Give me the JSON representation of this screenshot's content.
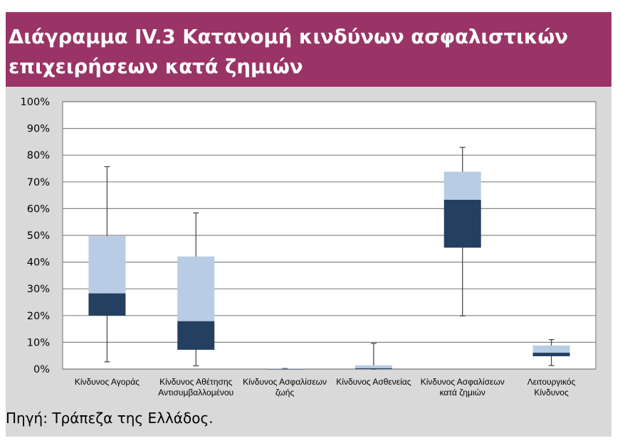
{
  "title": {
    "line1": "Διάγραμμα IV.3 Κατανομή κινδύνων ασφαλιστικών",
    "line2": "επιχειρήσεων κατά ζημιών"
  },
  "source": "Πηγή: Τράπεζα της Ελλάδος.",
  "colors": {
    "title_band": "#9a3466",
    "panel": "#d9d9d9",
    "plot_area": "#ffffff",
    "box_upper": "#b8cce4",
    "box_lower": "#243f60",
    "whisker": "#404040",
    "gridline": "#868686"
  },
  "chart_data": {
    "type": "box",
    "title": "",
    "xlabel": "",
    "ylabel": "",
    "ylim": [
      0,
      100
    ],
    "yticks": [
      "0%",
      "10%",
      "20%",
      "30%",
      "40%",
      "50%",
      "60%",
      "70%",
      "80%",
      "90%",
      "100%"
    ],
    "grid": true,
    "legend": "none",
    "categories": [
      [
        "Κίνδυνος Αγοράς"
      ],
      [
        "Κίνδυνος Αθέτησης",
        "Αντισυμβαλλομένου"
      ],
      [
        "Κίνδυνος Ασφαλίσεων",
        "ζωής"
      ],
      [
        "Κίνδυνος Ασθενείας"
      ],
      [
        "Κίνδυνος Ασφαλίσεων",
        "κατά ζημιών"
      ],
      [
        "Λειτουργικός",
        "Κίνδυνος"
      ]
    ],
    "boxes": [
      {
        "min": 2.7,
        "q1": 20.0,
        "median": 28.3,
        "q3": 49.7,
        "max": 75.7
      },
      {
        "min": 1.2,
        "q1": 7.2,
        "median": 17.9,
        "q3": 42.1,
        "max": 58.4
      },
      {
        "min": 0.0,
        "q1": 0.0,
        "median": 0.0,
        "q3": 0.1,
        "max": 0.2
      },
      {
        "min": 0.0,
        "q1": 0.0,
        "median": 0.3,
        "q3": 1.4,
        "max": 9.6
      },
      {
        "min": 19.9,
        "q1": 45.4,
        "median": 63.3,
        "q3": 73.8,
        "max": 82.9
      },
      {
        "min": 1.3,
        "q1": 4.8,
        "median": 6.1,
        "q3": 8.8,
        "max": 11.0
      }
    ]
  }
}
